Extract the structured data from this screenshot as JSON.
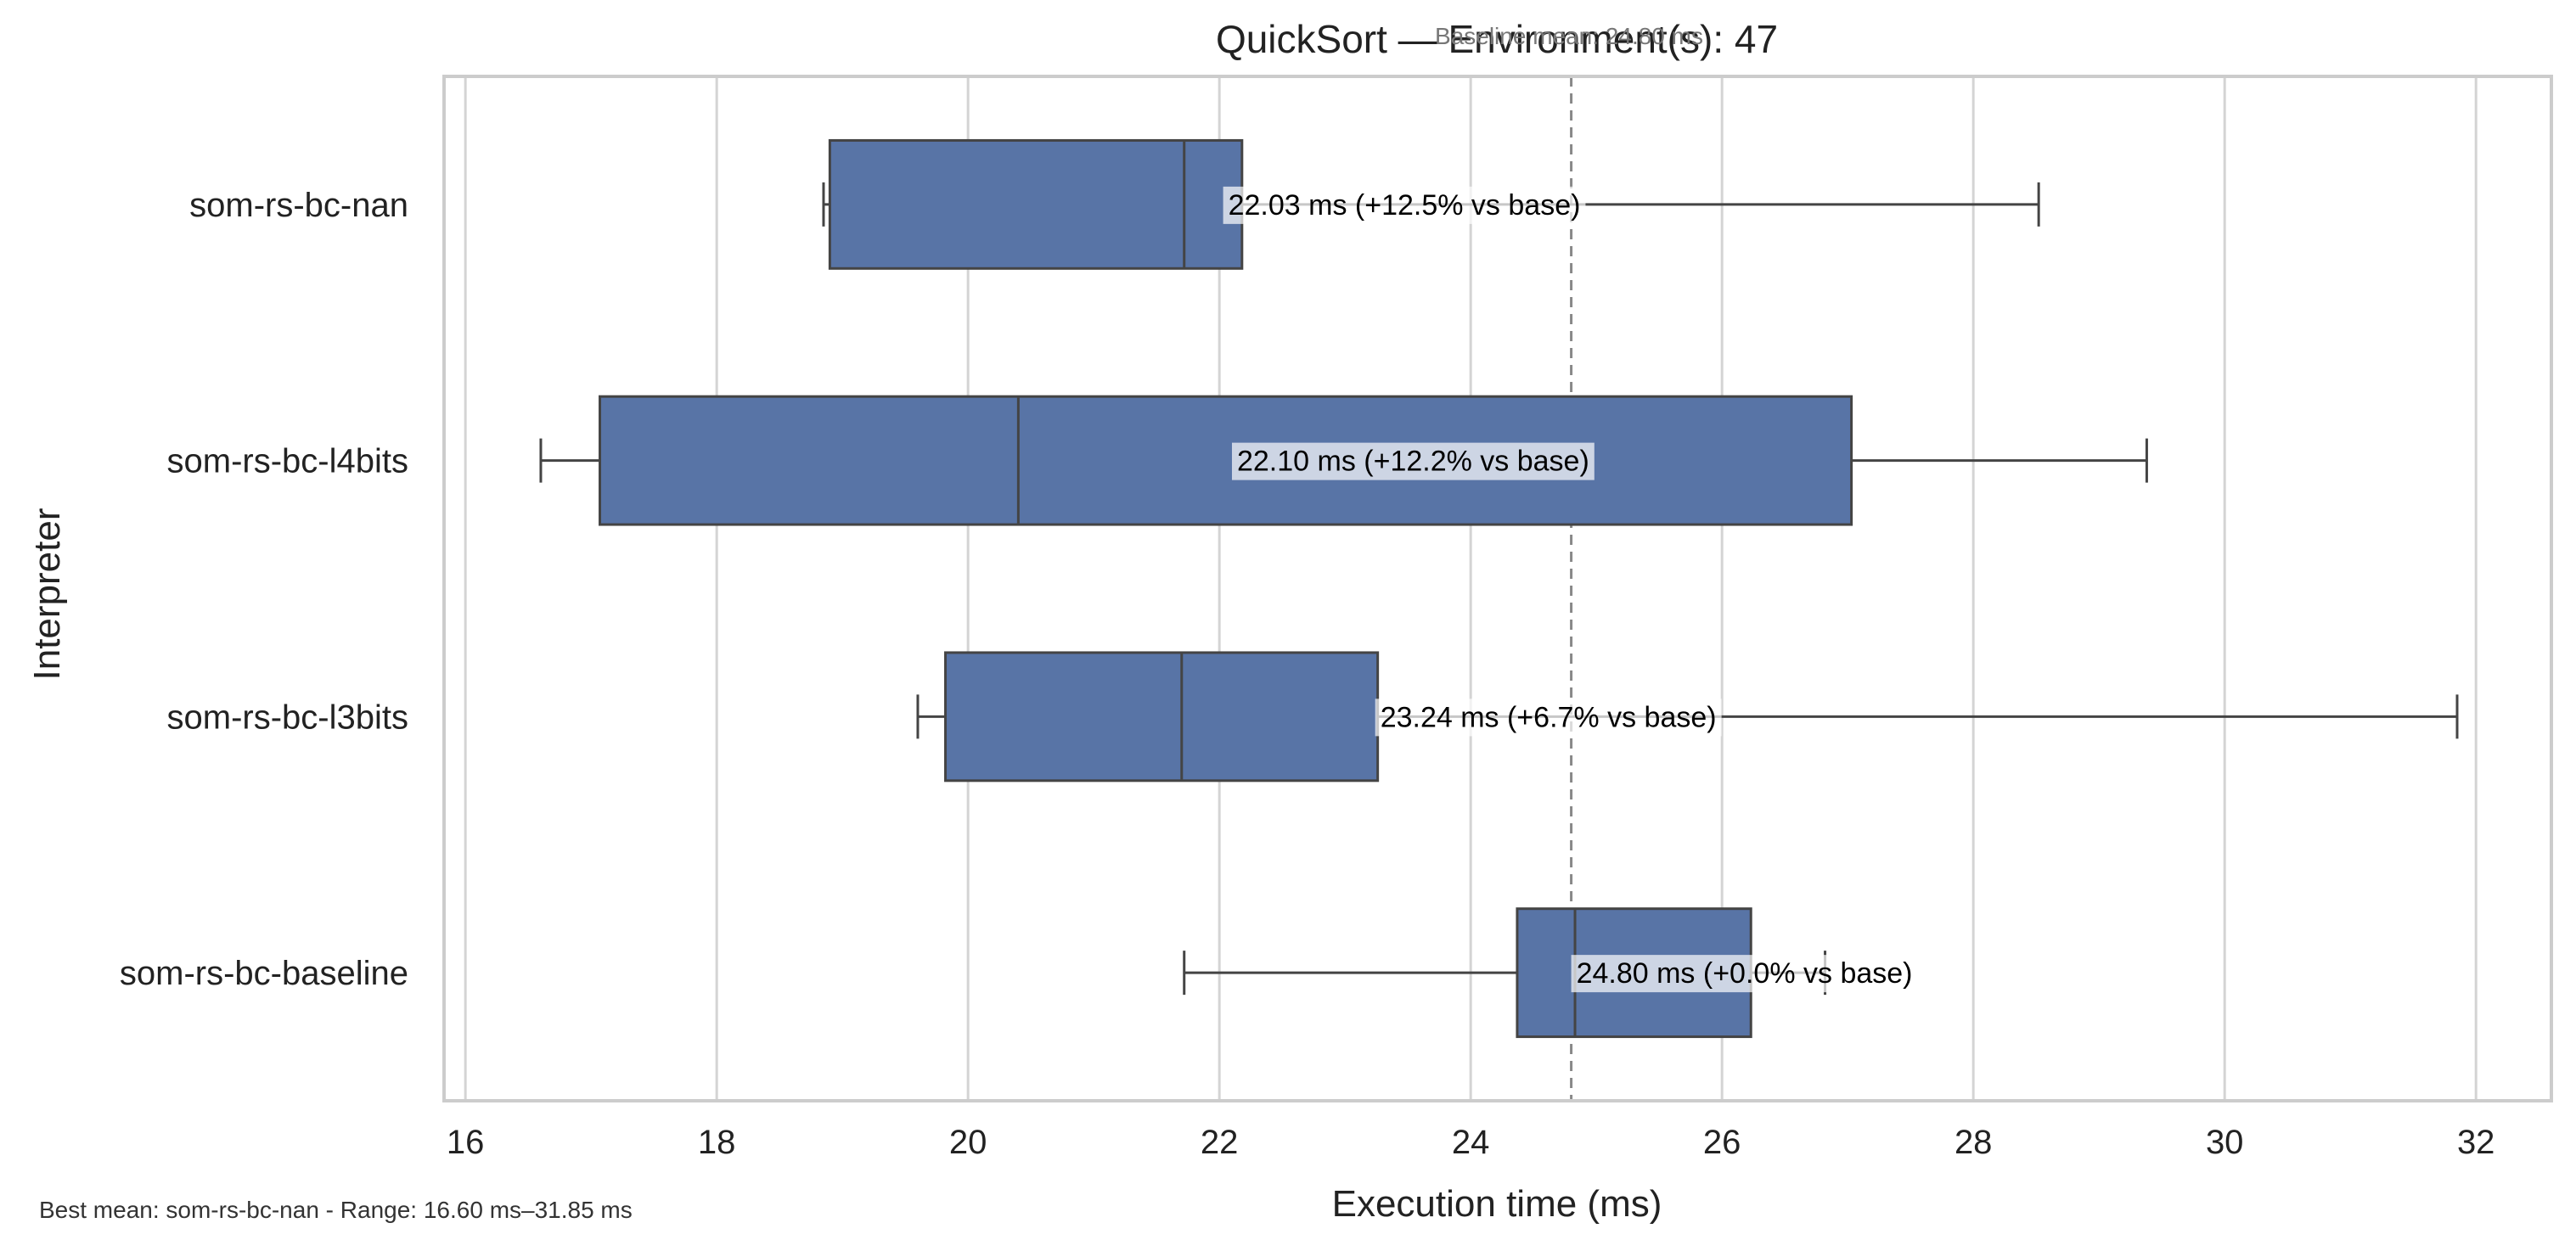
{
  "chart_data": {
    "type": "boxplot",
    "orientation": "horizontal",
    "title": "QuickSort — Environment(s): 47",
    "xlabel": "Execution time (ms)",
    "ylabel": "Interpreter",
    "xlim": [
      15.83,
      32.6
    ],
    "xticks": [
      16,
      18,
      20,
      22,
      24,
      26,
      28,
      30,
      32
    ],
    "grid": "vertical",
    "box_color": "#5874a6",
    "line_color": "#444444",
    "baseline": {
      "value": 24.8,
      "label": "Baseline mean: 24.80 ms",
      "color": "#888888"
    },
    "categories": [
      "som-rs-bc-nan",
      "som-rs-bc-l4bits",
      "som-rs-bc-l3bits",
      "som-rs-bc-baseline"
    ],
    "series": [
      {
        "category": "som-rs-bc-nan",
        "whisker_low": 18.85,
        "q1": 18.9,
        "median": 21.72,
        "q3": 22.18,
        "whisker_high": 28.52,
        "mean": 22.03,
        "annotation": "22.03 ms  (+12.5% vs base)"
      },
      {
        "category": "som-rs-bc-l4bits",
        "whisker_low": 16.6,
        "q1": 17.07,
        "median": 20.4,
        "q3": 27.03,
        "whisker_high": 29.38,
        "mean": 22.1,
        "annotation": "22.10 ms  (+12.2% vs base)"
      },
      {
        "category": "som-rs-bc-l3bits",
        "whisker_low": 19.6,
        "q1": 19.82,
        "median": 21.7,
        "q3": 23.26,
        "whisker_high": 31.85,
        "mean": 23.24,
        "annotation": "23.24 ms  (+6.7% vs base)"
      },
      {
        "category": "som-rs-bc-baseline",
        "whisker_low": 21.72,
        "q1": 24.37,
        "median": 24.83,
        "q3": 26.23,
        "whisker_high": 26.82,
        "mean": 24.8,
        "annotation": "24.80 ms  (+0.0% vs base)"
      }
    ],
    "footer": "Best mean: som-rs-bc-nan - Range: 16.60 ms–31.85 ms"
  }
}
